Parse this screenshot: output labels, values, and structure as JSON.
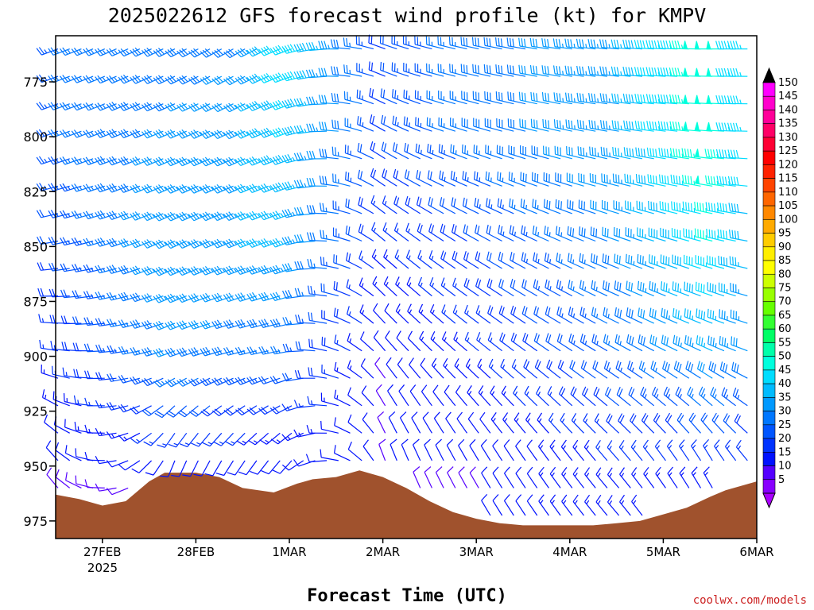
{
  "chart_data": {
    "type": "wind-barb-profile",
    "title": "2025022612 GFS forecast wind profile (kt) for KMPV",
    "xlabel": "Forecast Time (UTC)",
    "ylabel": "",
    "y_ticks": [
      "775",
      "800",
      "825",
      "850",
      "875",
      "900",
      "925",
      "950",
      "975"
    ],
    "y_tick_values": [
      775,
      800,
      825,
      850,
      875,
      900,
      925,
      950,
      975
    ],
    "ylim": [
      754,
      983
    ],
    "x_ticks": [
      "27FEB",
      "28FEB",
      "1MAR",
      "2MAR",
      "3MAR",
      "4MAR",
      "5MAR",
      "6MAR"
    ],
    "x_tick_hours": [
      12,
      36,
      60,
      84,
      108,
      132,
      156,
      180
    ],
    "x_year_label": "2025",
    "xlim_hours": [
      0,
      180
    ],
    "colorbar": {
      "labels": [
        "150",
        "145",
        "140",
        "135",
        "130",
        "125",
        "120",
        "115",
        "110",
        "105",
        "100",
        "95",
        "90",
        "85",
        "80",
        "75",
        "70",
        "65",
        "60",
        "55",
        "50",
        "45",
        "40",
        "35",
        "30",
        "25",
        "20",
        "15",
        "10",
        "5"
      ],
      "colors": [
        "#ff00ff",
        "#ff00cc",
        "#ff0099",
        "#ff0066",
        "#ff0033",
        "#ff0000",
        "#ff2200",
        "#ff4400",
        "#ff6600",
        "#ff8800",
        "#ffaa00",
        "#ffcc00",
        "#ffee00",
        "#ffff00",
        "#ccff00",
        "#99ff00",
        "#66ff00",
        "#33ff33",
        "#00ff66",
        "#00ffaa",
        "#00ffdd",
        "#00ddff",
        "#00bbff",
        "#0099ff",
        "#0077ff",
        "#0055ff",
        "#0033ff",
        "#0011ff",
        "#5500ff",
        "#8800ff"
      ],
      "top_arrow_color": "#000000",
      "bottom_arrow_color": "#aa00ff"
    },
    "terrain_color": "#a0522d",
    "terrain_pressure": [
      [
        0,
        963
      ],
      [
        6,
        965
      ],
      [
        12,
        968
      ],
      [
        18,
        966
      ],
      [
        24,
        957
      ],
      [
        28,
        953
      ],
      [
        36,
        953
      ],
      [
        42,
        955
      ],
      [
        48,
        960
      ],
      [
        56,
        962
      ],
      [
        62,
        958
      ],
      [
        66,
        956
      ],
      [
        72,
        955
      ],
      [
        78,
        952
      ],
      [
        84,
        955
      ],
      [
        90,
        960
      ],
      [
        96,
        966
      ],
      [
        102,
        971
      ],
      [
        108,
        974
      ],
      [
        114,
        976
      ],
      [
        120,
        977
      ],
      [
        126,
        977
      ],
      [
        132,
        977
      ],
      [
        138,
        977
      ],
      [
        144,
        976
      ],
      [
        150,
        975
      ],
      [
        156,
        972
      ],
      [
        162,
        969
      ],
      [
        168,
        964
      ],
      [
        172,
        961
      ],
      [
        180,
        957
      ]
    ],
    "wind_profile": {
      "description_levels_hpa": [
        765,
        800,
        850,
        900,
        950
      ],
      "by_level": [
        {
          "level": 765,
          "segments": [
            [
              0,
              250,
              25
            ],
            [
              48,
              240,
              30
            ],
            [
              60,
              250,
              45
            ],
            [
              84,
              290,
              20
            ],
            [
              96,
              285,
              25
            ],
            [
              144,
              275,
              35
            ],
            [
              168,
              270,
              50
            ],
            [
              180,
              270,
              40
            ]
          ]
        },
        {
          "level": 800,
          "segments": [
            [
              0,
              250,
              25
            ],
            [
              48,
              245,
              35
            ],
            [
              60,
              250,
              40
            ],
            [
              84,
              300,
              20
            ],
            [
              96,
              290,
              25
            ],
            [
              144,
              280,
              35
            ],
            [
              168,
              275,
              50
            ],
            [
              180,
              270,
              40
            ]
          ]
        },
        {
          "level": 850,
          "segments": [
            [
              0,
              260,
              20
            ],
            [
              30,
              245,
              35
            ],
            [
              60,
              250,
              35
            ],
            [
              84,
              310,
              15
            ],
            [
              108,
              300,
              20
            ],
            [
              144,
              290,
              30
            ],
            [
              168,
              285,
              45
            ],
            [
              180,
              280,
              35
            ]
          ]
        },
        {
          "level": 900,
          "segments": [
            [
              0,
              280,
              15
            ],
            [
              30,
              250,
              30
            ],
            [
              60,
              260,
              25
            ],
            [
              84,
              320,
              10
            ],
            [
              108,
              310,
              15
            ],
            [
              144,
              300,
              25
            ],
            [
              168,
              295,
              35
            ],
            [
              180,
              290,
              30
            ]
          ]
        },
        {
          "level": 950,
          "segments": [
            [
              0,
              320,
              10
            ],
            [
              30,
              200,
              10
            ],
            [
              60,
              220,
              10
            ],
            [
              84,
              340,
              10
            ],
            [
              108,
              330,
              10
            ],
            [
              144,
              320,
              15
            ],
            [
              168,
              330,
              15
            ],
            [
              180,
              320,
              15
            ]
          ]
        }
      ]
    }
  },
  "credit": "coolwx.com/models",
  "credit_color": "#cc2222"
}
